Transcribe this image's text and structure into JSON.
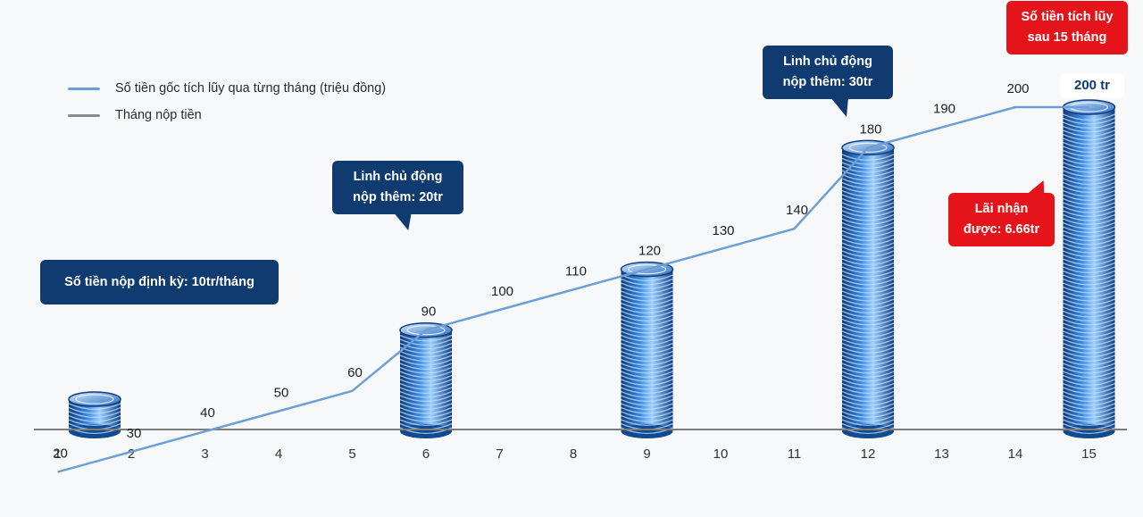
{
  "legend": {
    "principal_line_label": "Số tiền gốc tích lũy qua từng tháng (triệu đồng)",
    "deposit_month_label": "Tháng nộp tiền"
  },
  "callouts": {
    "regular_deposit": "Số tiền nộp định kỳ: 10tr/tháng",
    "extra_20": "Linh chủ động nộp thêm: 20tr",
    "extra_30": "Linh chủ động nộp thêm: 30tr",
    "interest": "Lãi nhận được: 6.66tr",
    "total_after_15": "Số tiền tích lũy sau 15 tháng",
    "final_amount": "200 tr"
  },
  "colors": {
    "line": "#6b9fd6",
    "axis": "#7d7d7d",
    "navy": "#0f3b70",
    "red": "#e5141b",
    "coin": "#3d7fd0"
  },
  "chart_data": {
    "type": "line",
    "x": [
      1,
      2,
      3,
      4,
      5,
      6,
      7,
      8,
      9,
      10,
      11,
      12,
      13,
      14,
      15
    ],
    "series": [
      {
        "name": "Số tiền gốc tích lũy qua từng tháng (triệu đồng)",
        "values": [
          20,
          30,
          40,
          50,
          60,
          90,
          100,
          110,
          120,
          130,
          140,
          180,
          190,
          200,
          200
        ],
        "labels": [
          "20",
          "30",
          "40",
          "50",
          "60",
          "90",
          "100",
          "110",
          "120",
          "130",
          "140",
          "180",
          "190",
          "200",
          ""
        ]
      }
    ],
    "deposit_months": [
      1,
      6,
      9,
      12,
      15
    ],
    "ylim": [
      0,
      200
    ],
    "grid": false,
    "legend_position": "top-left"
  }
}
